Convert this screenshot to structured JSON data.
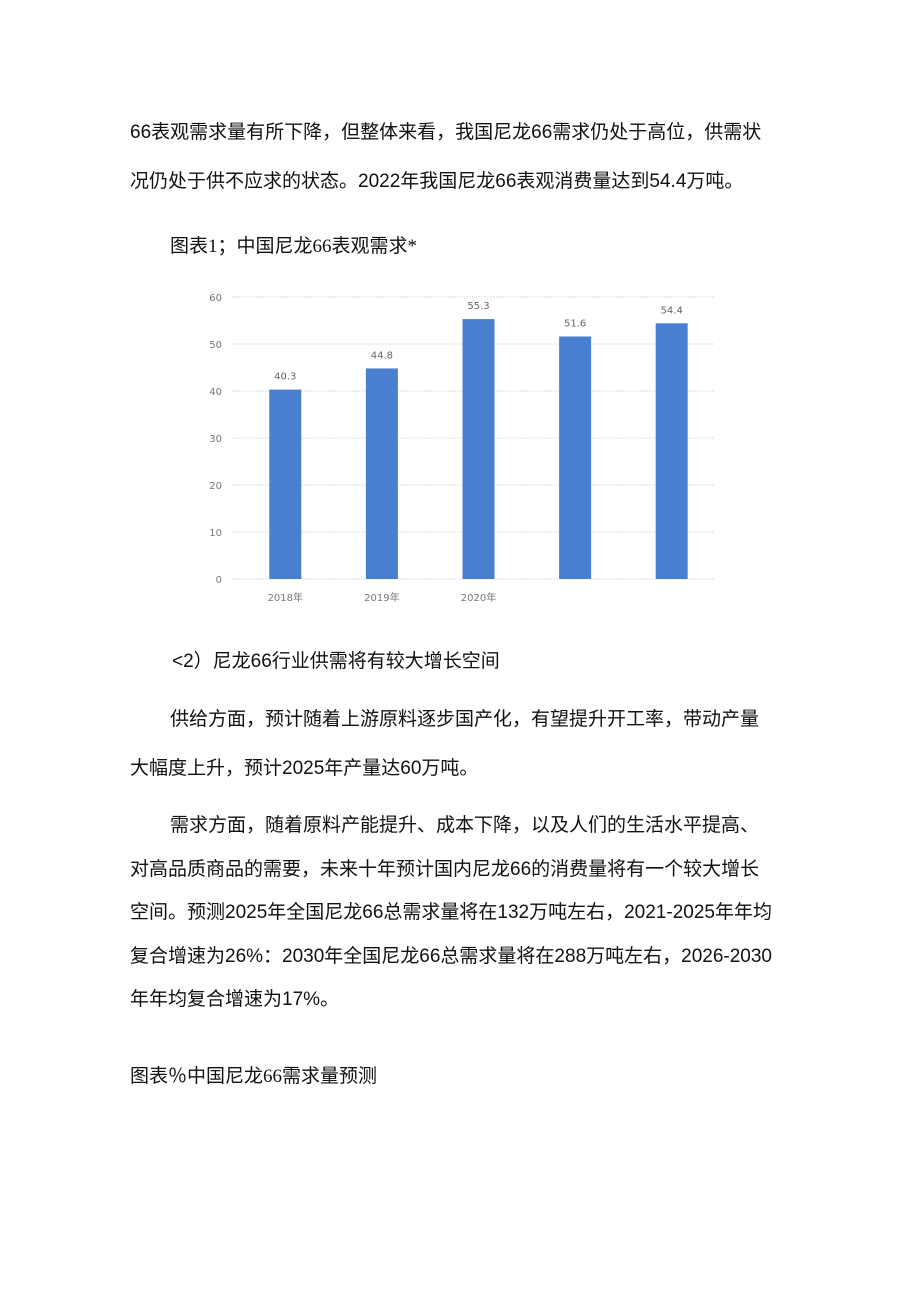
{
  "paragraphs": [
    {
      "text": "66表观需求量有所下降，但整体来看，我国尼龙66需求仍处于高位，供需状"
    },
    {
      "text": "况仍处于供不应求的状态。2022年我国尼龙66表观消费量达到54.4万吨。"
    },
    {
      "text": "图表1；中国尼龙66表观需求*"
    },
    {
      "text": "<2）尼龙66行业供需将有较大增长空间"
    },
    {
      "text": "供给方面，预计随着上游原料逐步国产化，有望提升开工率，带动产量"
    },
    {
      "text": "大幅度上升，预计2025年产量达60万吨。"
    },
    {
      "text": "需求方面，随着原料产能提升、成本下降，以及人们的生活水平提高、"
    },
    {
      "text": "对高品质商品的需要，未来十年预计国内尼龙66的消费量将有一个较大增长"
    },
    {
      "text": "空间。预测2025年全国尼龙66总需求量将在132万吨左右，2021-2025年年均"
    },
    {
      "text": "复合增速为26%：2030年全国尼龙66总需求量将在288万吨左右，2026-2030"
    },
    {
      "text": "年年均复合增速为17%。"
    },
    {
      "text": "图表％中国尼龙66需求量预测"
    }
  ],
  "chart_data": {
    "type": "bar",
    "categories": [
      "2018年",
      "2019年",
      "2020年",
      "",
      ""
    ],
    "values": [
      40.3,
      44.8,
      55.3,
      51.6,
      54.4
    ],
    "data_labels": [
      "40.3",
      "44.8",
      "55.3",
      "51.6",
      "54.4"
    ],
    "yticks": [
      "0",
      "10",
      "20",
      "30",
      "40",
      "50",
      "60"
    ],
    "ylim": [
      0,
      60
    ],
    "grid": true,
    "bar_color": "#4a7fcf"
  }
}
